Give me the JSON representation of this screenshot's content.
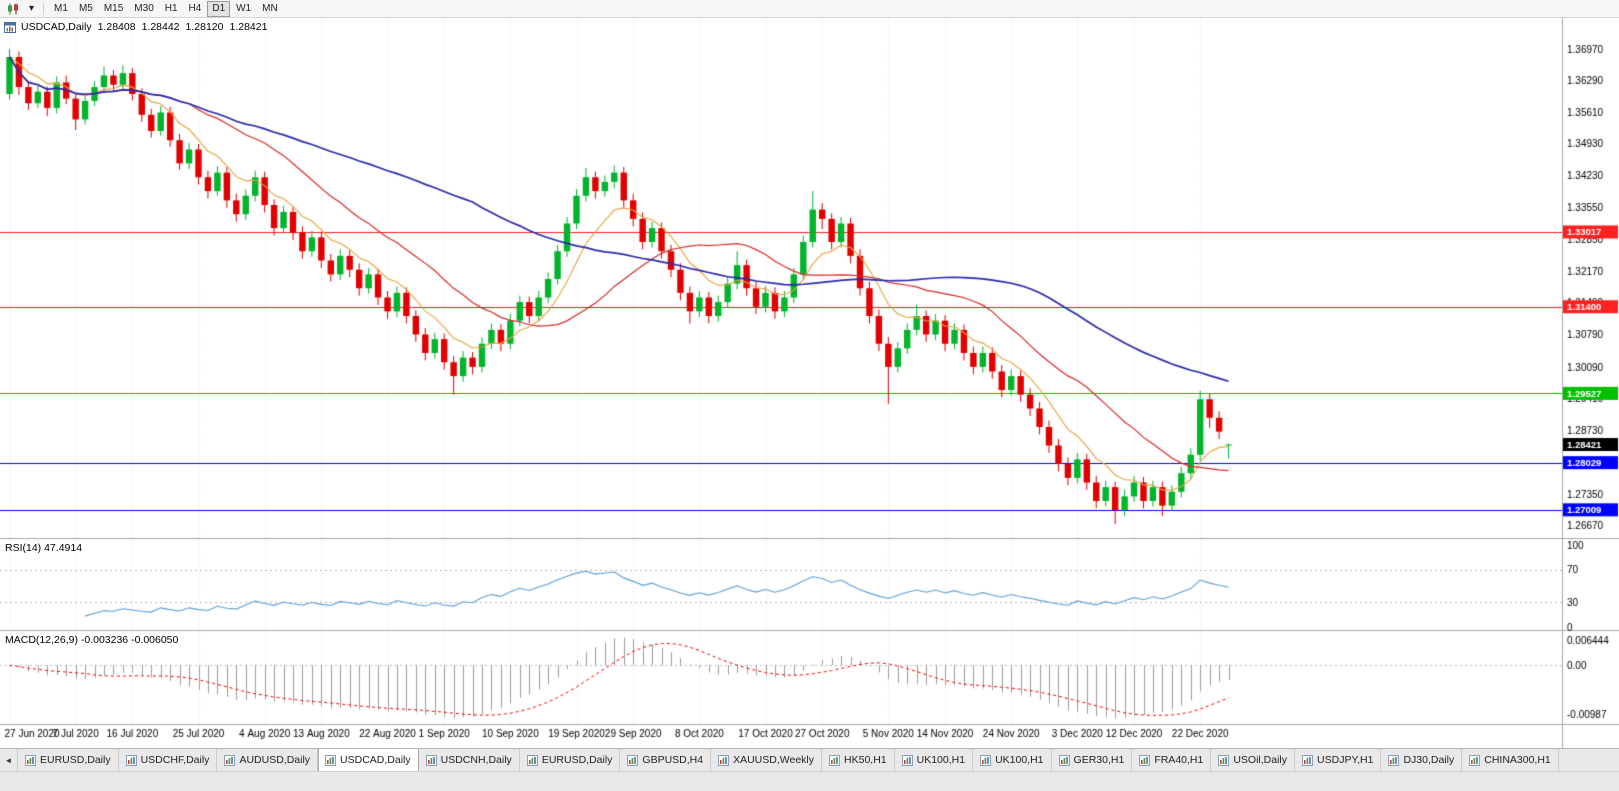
{
  "toolbar": {
    "timeframes": [
      "M1",
      "M5",
      "M15",
      "M30",
      "H1",
      "H4",
      "D1",
      "W1",
      "MN"
    ],
    "active_timeframe": "D1",
    "chart_type_icon": "candlestick-chart-icon",
    "dropdown_icon": "chevron-down-icon",
    "dropdown_glyph": "▾"
  },
  "chart": {
    "symbol_title": "USDCAD,Daily",
    "ohlc": {
      "open": "1.28408",
      "high": "1.28442",
      "low": "1.28120",
      "close": "1.28421"
    },
    "colors": {
      "bull": "#00b42c",
      "bear": "#e00000",
      "wick_bull": "#00962a",
      "wick_bear": "#c00000",
      "ma_fast": "#e8a33d",
      "ma_mid": "#d92b2b",
      "ma_slow": "#2929ad",
      "grid": "#e2e2e2",
      "separator": "#a8a8a8",
      "axis_text": "#000000",
      "rsi_line": "#5aa0dc",
      "rsi_level": "#b8b8b8",
      "macd_hist": "#9c9c9c",
      "macd_signal": "#ff0000",
      "level_red": "#ff2020",
      "level_green": "#00c000",
      "level_blue": "#0000ff",
      "current_price_bg": "#000000"
    },
    "levels": [
      {
        "value": 1.33017,
        "label": "1.33017",
        "color": "#ff2020"
      },
      {
        "value": 1.314,
        "label": "1.31400",
        "color": "#ff2020"
      },
      {
        "value": 1.29527,
        "label": "1.29527",
        "color": "#00c000"
      },
      {
        "value": 1.28029,
        "label": "1.28029",
        "color": "#0000ff"
      },
      {
        "value": 1.27009,
        "label": "1.27009",
        "color": "#0000ff"
      }
    ],
    "current_price": {
      "value": 1.28421,
      "label": "1.28421",
      "color": "#000000"
    },
    "price_ticks": [
      1.3697,
      1.3629,
      1.3561,
      1.3493,
      1.3423,
      1.3355,
      1.3285,
      1.3217,
      1.3149,
      1.3079,
      1.3009,
      1.2941,
      1.2873,
      1.2805,
      1.2735,
      1.2667
    ]
  },
  "chart_data": {
    "type": "candlestick",
    "symbol": "USDCAD",
    "timeframe": "Daily",
    "title": "USDCAD,Daily 1.28408 1.28442 1.28120 1.28421",
    "ylim": [
      1.264,
      1.376
    ],
    "candles": [
      [
        1.36,
        1.3697,
        1.3588,
        1.368
      ],
      [
        1.368,
        1.3692,
        1.3598,
        1.3615
      ],
      [
        1.3615,
        1.3628,
        1.3566,
        1.358
      ],
      [
        1.358,
        1.3618,
        1.357,
        1.3605
      ],
      [
        1.3605,
        1.3616,
        1.3552,
        1.357
      ],
      [
        1.357,
        1.3638,
        1.3558,
        1.3625
      ],
      [
        1.3625,
        1.364,
        1.3578,
        1.359
      ],
      [
        1.359,
        1.3602,
        1.3522,
        1.3545
      ],
      [
        1.3545,
        1.3598,
        1.3534,
        1.3585
      ],
      [
        1.3585,
        1.3628,
        1.3574,
        1.3615
      ],
      [
        1.3615,
        1.366,
        1.3606,
        1.364
      ],
      [
        1.364,
        1.3652,
        1.3604,
        1.362
      ],
      [
        1.362,
        1.3662,
        1.361,
        1.3645
      ],
      [
        1.3645,
        1.3656,
        1.3586,
        1.36
      ],
      [
        1.36,
        1.3612,
        1.354,
        1.3555
      ],
      [
        1.3555,
        1.3568,
        1.3506,
        1.352
      ],
      [
        1.352,
        1.3574,
        1.351,
        1.356
      ],
      [
        1.356,
        1.3572,
        1.3486,
        1.35
      ],
      [
        1.35,
        1.3514,
        1.3436,
        1.345
      ],
      [
        1.345,
        1.3494,
        1.3438,
        1.348
      ],
      [
        1.348,
        1.3492,
        1.3404,
        1.342
      ],
      [
        1.342,
        1.3434,
        1.3374,
        1.339
      ],
      [
        1.339,
        1.3444,
        1.338,
        1.343
      ],
      [
        1.343,
        1.3442,
        1.3354,
        1.337
      ],
      [
        1.337,
        1.3384,
        1.3324,
        1.334
      ],
      [
        1.334,
        1.3394,
        1.3328,
        1.338
      ],
      [
        1.338,
        1.3434,
        1.3368,
        1.342
      ],
      [
        1.342,
        1.3432,
        1.3344,
        1.336
      ],
      [
        1.336,
        1.3372,
        1.3294,
        1.331
      ],
      [
        1.331,
        1.3358,
        1.3298,
        1.3345
      ],
      [
        1.3345,
        1.3356,
        1.3284,
        1.33
      ],
      [
        1.33,
        1.3314,
        1.3244,
        1.326
      ],
      [
        1.326,
        1.3304,
        1.3248,
        1.329
      ],
      [
        1.329,
        1.3302,
        1.3224,
        1.324
      ],
      [
        1.324,
        1.3254,
        1.3194,
        1.321
      ],
      [
        1.321,
        1.3264,
        1.3198,
        1.325
      ],
      [
        1.325,
        1.3262,
        1.3204,
        1.322
      ],
      [
        1.322,
        1.3234,
        1.3164,
        1.318
      ],
      [
        1.318,
        1.3224,
        1.3168,
        1.321
      ],
      [
        1.321,
        1.3222,
        1.3144,
        1.316
      ],
      [
        1.316,
        1.3174,
        1.3114,
        1.313
      ],
      [
        1.313,
        1.3184,
        1.3118,
        1.317
      ],
      [
        1.317,
        1.3182,
        1.3104,
        1.312
      ],
      [
        1.312,
        1.3132,
        1.3064,
        1.308
      ],
      [
        1.308,
        1.3094,
        1.3024,
        1.304
      ],
      [
        1.304,
        1.3084,
        1.3028,
        1.307
      ],
      [
        1.307,
        1.3082,
        1.3004,
        1.302
      ],
      [
        1.302,
        1.3034,
        1.295,
        1.299
      ],
      [
        1.299,
        1.3044,
        1.2978,
        1.303
      ],
      [
        1.303,
        1.3042,
        1.2994,
        1.301
      ],
      [
        1.301,
        1.3074,
        1.2998,
        1.306
      ],
      [
        1.306,
        1.3104,
        1.3048,
        1.309
      ],
      [
        1.309,
        1.3102,
        1.3044,
        1.306
      ],
      [
        1.306,
        1.3124,
        1.3048,
        1.311
      ],
      [
        1.311,
        1.3164,
        1.3098,
        1.315
      ],
      [
        1.315,
        1.3162,
        1.3104,
        1.312
      ],
      [
        1.312,
        1.3174,
        1.3108,
        1.316
      ],
      [
        1.316,
        1.3214,
        1.3148,
        1.32
      ],
      [
        1.32,
        1.3274,
        1.3188,
        1.326
      ],
      [
        1.326,
        1.3334,
        1.3248,
        1.332
      ],
      [
        1.332,
        1.3394,
        1.3308,
        1.338
      ],
      [
        1.338,
        1.344,
        1.3368,
        1.342
      ],
      [
        1.342,
        1.3432,
        1.3374,
        1.339
      ],
      [
        1.339,
        1.3424,
        1.3378,
        1.341
      ],
      [
        1.341,
        1.3445,
        1.3396,
        1.343
      ],
      [
        1.343,
        1.3442,
        1.3354,
        1.337
      ],
      [
        1.337,
        1.3384,
        1.3314,
        1.333
      ],
      [
        1.333,
        1.3344,
        1.3264,
        1.328
      ],
      [
        1.328,
        1.3324,
        1.3268,
        1.331
      ],
      [
        1.331,
        1.3322,
        1.3244,
        1.326
      ],
      [
        1.326,
        1.3274,
        1.3204,
        1.322
      ],
      [
        1.322,
        1.3234,
        1.3154,
        1.317
      ],
      [
        1.317,
        1.3184,
        1.3104,
        1.313
      ],
      [
        1.313,
        1.3174,
        1.3118,
        1.316
      ],
      [
        1.316,
        1.3172,
        1.3104,
        1.312
      ],
      [
        1.312,
        1.3164,
        1.3108,
        1.315
      ],
      [
        1.315,
        1.3204,
        1.3138,
        1.319
      ],
      [
        1.319,
        1.326,
        1.3178,
        1.323
      ],
      [
        1.323,
        1.3242,
        1.3164,
        1.318
      ],
      [
        1.318,
        1.3194,
        1.3124,
        1.314
      ],
      [
        1.314,
        1.3184,
        1.3128,
        1.317
      ],
      [
        1.317,
        1.3182,
        1.3114,
        1.313
      ],
      [
        1.313,
        1.3174,
        1.3118,
        1.316
      ],
      [
        1.316,
        1.3224,
        1.3148,
        1.321
      ],
      [
        1.321,
        1.3294,
        1.3198,
        1.328
      ],
      [
        1.328,
        1.339,
        1.3268,
        1.335
      ],
      [
        1.335,
        1.3364,
        1.3308,
        1.333
      ],
      [
        1.333,
        1.3342,
        1.3264,
        1.328
      ],
      [
        1.328,
        1.3334,
        1.3268,
        1.332
      ],
      [
        1.332,
        1.3332,
        1.3234,
        1.325
      ],
      [
        1.325,
        1.3264,
        1.3164,
        1.318
      ],
      [
        1.318,
        1.3194,
        1.3104,
        1.312
      ],
      [
        1.312,
        1.3134,
        1.3044,
        1.306
      ],
      [
        1.306,
        1.3074,
        1.293,
        1.301
      ],
      [
        1.301,
        1.3064,
        1.2998,
        1.305
      ],
      [
        1.305,
        1.3104,
        1.3038,
        1.309
      ],
      [
        1.309,
        1.3145,
        1.3078,
        1.312
      ],
      [
        1.312,
        1.3132,
        1.3064,
        1.308
      ],
      [
        1.308,
        1.3124,
        1.3068,
        1.311
      ],
      [
        1.311,
        1.3122,
        1.3044,
        1.306
      ],
      [
        1.306,
        1.3104,
        1.3048,
        1.309
      ],
      [
        1.309,
        1.3102,
        1.3024,
        1.304
      ],
      [
        1.304,
        1.3054,
        1.2994,
        1.301
      ],
      [
        1.301,
        1.3054,
        1.2998,
        1.304
      ],
      [
        1.304,
        1.3052,
        1.2984,
        1.3
      ],
      [
        1.3,
        1.3014,
        1.2944,
        1.296
      ],
      [
        1.296,
        1.3004,
        1.2948,
        1.299
      ],
      [
        1.299,
        1.3002,
        1.2934,
        1.295
      ],
      [
        1.295,
        1.2964,
        1.2904,
        1.292
      ],
      [
        1.292,
        1.2934,
        1.2864,
        1.288
      ],
      [
        1.288,
        1.2894,
        1.2824,
        1.284
      ],
      [
        1.284,
        1.2854,
        1.2784,
        1.28
      ],
      [
        1.28,
        1.2814,
        1.2754,
        1.277
      ],
      [
        1.277,
        1.2824,
        1.2758,
        1.281
      ],
      [
        1.281,
        1.2822,
        1.2744,
        1.276
      ],
      [
        1.276,
        1.2774,
        1.2704,
        1.272
      ],
      [
        1.272,
        1.2764,
        1.2708,
        1.275
      ],
      [
        1.275,
        1.2762,
        1.267,
        1.27
      ],
      [
        1.27,
        1.2744,
        1.2688,
        1.273
      ],
      [
        1.273,
        1.2774,
        1.2718,
        1.276
      ],
      [
        1.276,
        1.2772,
        1.2704,
        1.272
      ],
      [
        1.272,
        1.2764,
        1.2708,
        1.275
      ],
      [
        1.275,
        1.2762,
        1.2688,
        1.271
      ],
      [
        1.271,
        1.2754,
        1.2698,
        1.274
      ],
      [
        1.274,
        1.2794,
        1.2728,
        1.278
      ],
      [
        1.278,
        1.2834,
        1.2768,
        1.282
      ],
      [
        1.282,
        1.2958,
        1.2808,
        1.294
      ],
      [
        1.294,
        1.2952,
        1.2878,
        1.29
      ],
      [
        1.29,
        1.2914,
        1.2854,
        1.287
      ],
      [
        1.28408,
        1.28442,
        1.2812,
        1.28421
      ]
    ],
    "date_labels": [
      {
        "i": 0,
        "t": "27 Jun 2020"
      },
      {
        "i": 7,
        "t": "7 Jul 2020"
      },
      {
        "i": 13,
        "t": "16 Jul 2020"
      },
      {
        "i": 20,
        "t": "25 Jul 2020"
      },
      {
        "i": 27,
        "t": "4 Aug 2020"
      },
      {
        "i": 33,
        "t": "13 Aug 2020"
      },
      {
        "i": 40,
        "t": "22 Aug 2020"
      },
      {
        "i": 46,
        "t": "1 Sep 2020"
      },
      {
        "i": 53,
        "t": "10 Sep 2020"
      },
      {
        "i": 60,
        "t": "19 Sep 2020"
      },
      {
        "i": 66,
        "t": "29 Sep 2020"
      },
      {
        "i": 73,
        "t": "8 Oct 2020"
      },
      {
        "i": 80,
        "t": "17 Oct 2020"
      },
      {
        "i": 86,
        "t": "27 Oct 2020"
      },
      {
        "i": 93,
        "t": "5 Nov 2020"
      },
      {
        "i": 99,
        "t": "14 Nov 2020"
      },
      {
        "i": 106,
        "t": "24 Nov 2020"
      },
      {
        "i": 113,
        "t": "3 Dec 2020"
      },
      {
        "i": 119,
        "t": "12 Dec 2020"
      },
      {
        "i": 126,
        "t": "22 Dec 2020"
      }
    ]
  },
  "rsi_panel": {
    "label": "RSI(14) 47.4914",
    "ticks": [
      {
        "v": 100,
        "t": "100"
      },
      {
        "v": 70,
        "t": "70"
      },
      {
        "v": 30,
        "t": "30"
      },
      {
        "v": 0,
        "t": "0"
      }
    ],
    "levels": [
      70,
      30
    ]
  },
  "macd_panel": {
    "label": "MACD(12,26,9) -0.003236 -0.006050",
    "ticks": [
      {
        "v": 0.006444,
        "t": "0.006444"
      },
      {
        "v": 0,
        "t": "0.00"
      },
      {
        "v": -0.00987,
        "t": "-0.00987"
      }
    ]
  },
  "tabs": {
    "scroll_left_glyph": "◄",
    "active_index": 3,
    "items": [
      {
        "label": "EURUSD,Daily"
      },
      {
        "label": "USDCHF,Daily"
      },
      {
        "label": "AUDUSD,Daily"
      },
      {
        "label": "USDCAD,Daily"
      },
      {
        "label": "USDCNH,Daily"
      },
      {
        "label": "EURUSD,Daily"
      },
      {
        "label": "GBPUSD,H4"
      },
      {
        "label": "XAUUSD,Weekly"
      },
      {
        "label": "HK50,H1"
      },
      {
        "label": "UK100,H1"
      },
      {
        "label": "UK100,H1"
      },
      {
        "label": "GER30,H1"
      },
      {
        "label": "FRA40,H1"
      },
      {
        "label": "USOil,Daily"
      },
      {
        "label": "USDJPY,H1"
      },
      {
        "label": "DJ30,Daily"
      },
      {
        "label": "CHINA300,H1"
      }
    ]
  }
}
